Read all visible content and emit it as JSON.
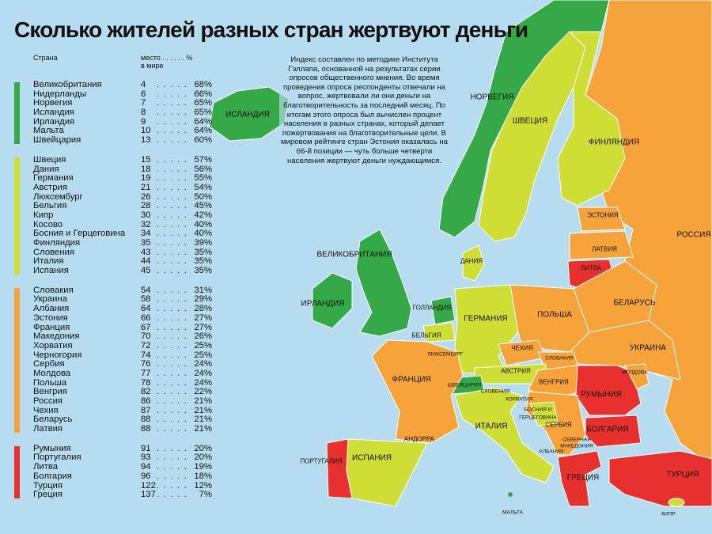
{
  "title": "Сколько жителей разных стран жертвуют деньги",
  "table": {
    "col_country": "Страна",
    "col_rank_line1": "место . . . . . . %",
    "col_rank_line2": "в мире",
    "groups": [
      {
        "color": "#35a948",
        "rows": [
          {
            "country": "Великобритания",
            "rank": "4",
            "pct": "68%"
          },
          {
            "country": "Нидерланды",
            "rank": "6",
            "pct": "66%"
          },
          {
            "country": "Норвегия",
            "rank": "7",
            "pct": "65%"
          },
          {
            "country": "Исландия",
            "rank": "8",
            "pct": "65%"
          },
          {
            "country": "Ирландия",
            "rank": "9",
            "pct": "64%"
          },
          {
            "country": "Мальта",
            "rank": "10",
            "pct": "64%"
          },
          {
            "country": "Швейцария",
            "rank": "13",
            "pct": "60%"
          }
        ]
      },
      {
        "color": "#cfde35",
        "rows": [
          {
            "country": "Швеция",
            "rank": "15",
            "pct": "57%"
          },
          {
            "country": "Дания",
            "rank": "18",
            "pct": "56%"
          },
          {
            "country": "Германия",
            "rank": "19",
            "pct": "55%"
          },
          {
            "country": "Австрия",
            "rank": "21",
            "pct": "54%"
          },
          {
            "country": "Люксембург",
            "rank": "26",
            "pct": "50%"
          },
          {
            "country": "Бельгия",
            "rank": "28",
            "pct": "45%"
          },
          {
            "country": "Кипр",
            "rank": "30",
            "pct": "42%"
          },
          {
            "country": "Косово",
            "rank": "32",
            "pct": "40%"
          },
          {
            "country": "Босния и Герцеговина",
            "rank": "34",
            "pct": "40%"
          },
          {
            "country": "Финляндия",
            "rank": "35",
            "pct": "39%"
          },
          {
            "country": "Словения",
            "rank": "43",
            "pct": "35%"
          },
          {
            "country": "Италия",
            "rank": "44",
            "pct": "35%"
          },
          {
            "country": "Испания",
            "rank": "45",
            "pct": "35%"
          }
        ]
      },
      {
        "color": "#f7a33c",
        "rows": [
          {
            "country": "Словакия",
            "rank": "54",
            "pct": "31%"
          },
          {
            "country": "Украина",
            "rank": "58",
            "pct": "29%"
          },
          {
            "country": "Албания",
            "rank": "64",
            "pct": "28%"
          },
          {
            "country": "Эстония",
            "rank": "66",
            "pct": "27%"
          },
          {
            "country": "Франция",
            "rank": "67",
            "pct": "27%"
          },
          {
            "country": "Македония",
            "rank": "70",
            "pct": "26%"
          },
          {
            "country": "Хорватия",
            "rank": "72",
            "pct": "25%"
          },
          {
            "country": "Черногория",
            "rank": "74",
            "pct": "25%"
          },
          {
            "country": "Сербия",
            "rank": "76",
            "pct": "24%"
          },
          {
            "country": "Молдова",
            "rank": "77",
            "pct": "24%"
          },
          {
            "country": "Польша",
            "rank": "78",
            "pct": "24%"
          },
          {
            "country": "Венгрия",
            "rank": "82",
            "pct": "22%"
          },
          {
            "country": "Россия",
            "rank": "86",
            "pct": "21%"
          },
          {
            "country": "Чехия",
            "rank": "87",
            "pct": "21%"
          },
          {
            "country": "Беларусь",
            "rank": "88",
            "pct": "21%"
          },
          {
            "country": "Латвия",
            "rank": "88",
            "pct": "21%"
          }
        ]
      },
      {
        "color": "#e8302e",
        "rows": [
          {
            "country": "Румыния",
            "rank": "91",
            "pct": "20%"
          },
          {
            "country": "Португалия",
            "rank": "93",
            "pct": "20%"
          },
          {
            "country": "Литва",
            "rank": "94",
            "pct": "19%"
          },
          {
            "country": "Болгария",
            "rank": "96",
            "pct": "18%"
          },
          {
            "country": "Турция",
            "rank": "122",
            "pct": "12%"
          },
          {
            "country": "Греция",
            "rank": "137",
            "pct": "7%"
          }
        ]
      }
    ]
  },
  "note": "Индекс составлен по методике Института Гэллапа, основанной на результатах серии опросов общественного мнения. Во время проведения опроса респонденты отвечали на вопрос, жертвовали ли они деньги на благотворительность за последний месяц. По итогам этого опроса был вычислен процент населения в разных странах, который делает пожертвования на благотворительные цели. В мировом рейтинге стран Эстония оказалась на 66-й позиции — чуть больше четверти населения жертвуют деньги нуждающимся.",
  "map": {
    "colors": {
      "sea": "#b7dcef",
      "green": "#35a948",
      "lime": "#cfde35",
      "orange": "#f7a33c",
      "red": "#e8302e",
      "nodata": "#f7a33c"
    },
    "labels": {
      "iceland": "ИСЛАНДИЯ",
      "norway": "НОРВЕГИЯ",
      "sweden": "ШВЕЦИЯ",
      "finland": "ФИНЛЯНДИЯ",
      "estonia": "ЭСТОНИЯ",
      "russia": "РОССИЯ",
      "latvia": "ЛАТВИЯ",
      "lithuania": "ЛИТВА",
      "uk": "ВЕЛИКОБРИТАНИЯ",
      "denmark": "ДАНИЯ",
      "ireland": "ИРЛАНДИЯ",
      "netherlands": "ГОЛЛАНДИЯ",
      "germany": "ГЕРМАНИЯ",
      "poland": "ПОЛЬША",
      "belarus": "БЕЛАРУСЬ",
      "belgium": "БЕЛЬГИЯ",
      "luxembourg": "ЛЮКСЕМБУРГ",
      "czech": "ЧЕХИЯ",
      "ukraine": "УКРАИНА",
      "slovakia": "СЛОВАКИЯ",
      "moldova": "МОЛДОВА",
      "france": "ФРАНЦИЯ",
      "austria": "АВСТРИЯ",
      "hungary": "ВЕНГРИЯ",
      "switzerland": "ШВЕЙЦАРИЯ",
      "romania": "РУМЫНИЯ",
      "slovenia": "СЛОВЕНИЯ",
      "croatia": "ХОРВАТИЯ",
      "bosnia1": "БОСНИЯ И",
      "bosnia2": "ГЕРЦЕГОВИНА",
      "serbia": "СЕРБИЯ",
      "italy": "ИТАЛИЯ",
      "bulgaria": "БОЛГАРИЯ",
      "macedonia1": "СЕВЕРНАЯ",
      "macedonia2": "МАКЕДОНИЯ",
      "albania": "АЛБАНИЯ",
      "andorra": "АНДОРРА",
      "portugal": "ПОРТУГАЛИЯ",
      "spain": "ИСПАНИЯ",
      "greece": "ГРЕЦИЯ",
      "turkey": "ТУРЦИЯ",
      "malta": "МАЛЬТА",
      "cyprus": "КИПР"
    }
  }
}
